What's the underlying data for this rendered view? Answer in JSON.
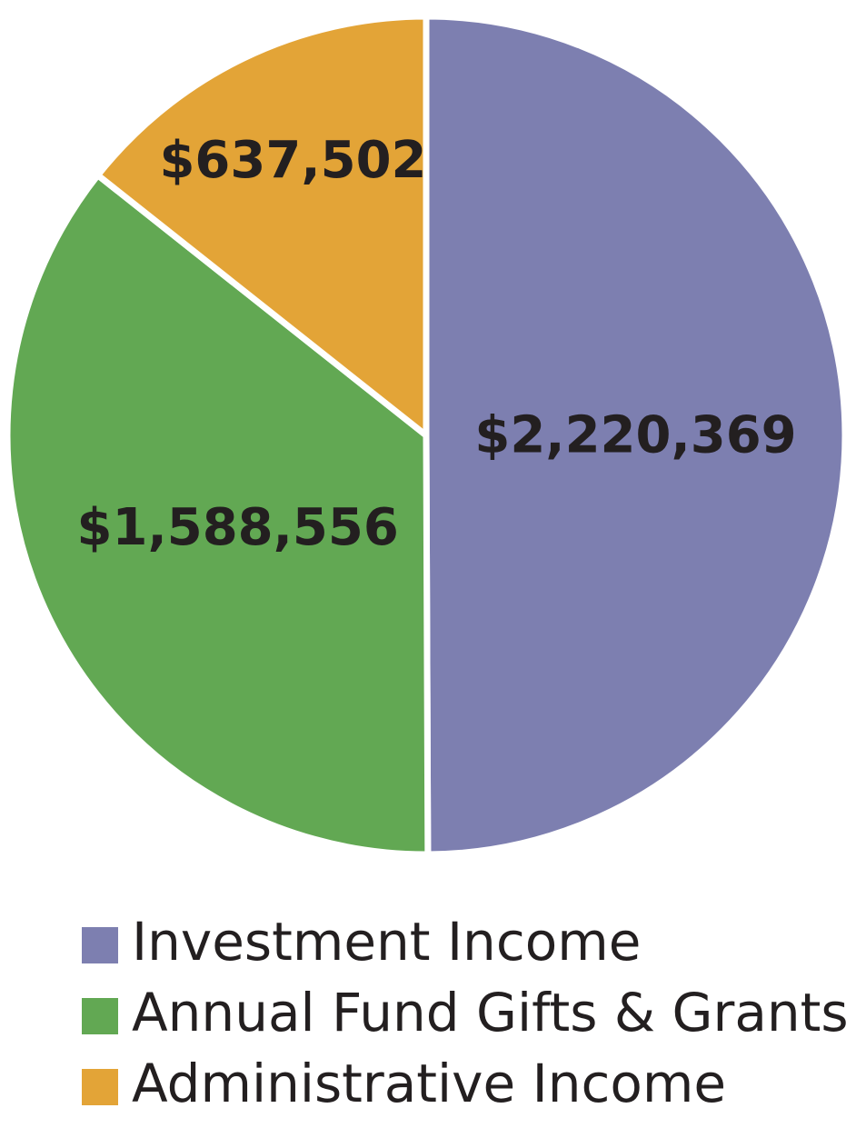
{
  "chart_data": {
    "type": "pie",
    "categories": [
      "Investment Income",
      "Annual Fund Gifts & Grants",
      "Administrative Income"
    ],
    "values": [
      2220369,
      1588556,
      637502
    ],
    "value_labels": [
      "$2,220,369",
      "$1,588,556",
      "$637,502"
    ],
    "colors": [
      "#7d7fb0",
      "#62a853",
      "#e3a437"
    ],
    "legend": "bottom"
  }
}
